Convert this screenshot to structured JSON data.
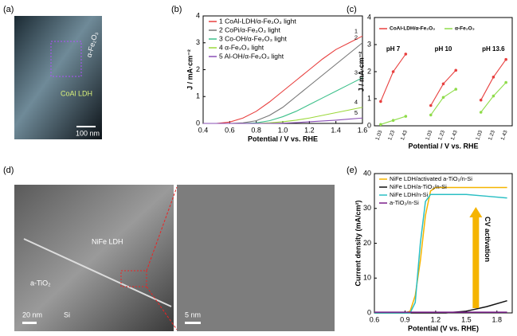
{
  "panels": {
    "a": {
      "label": "(a)",
      "texts": [
        "α-Fe₂O₃",
        "CoAl LDH",
        "100 nm"
      ]
    },
    "d": {
      "label": "(d)",
      "texts": [
        "NiFe LDH",
        "a-TiO₂",
        "20 nm",
        "Si",
        "5 nm"
      ]
    }
  },
  "chart_data": [
    {
      "type": "line",
      "label": "(b)",
      "xlabel": "Potential / V vs. RHE",
      "ylabel": "J / mA·cm⁻²",
      "x": [
        0.4,
        0.5,
        0.6,
        0.7,
        0.8,
        0.9,
        1.0,
        1.1,
        1.2,
        1.3,
        1.4,
        1.5,
        1.6
      ],
      "xlim": [
        0.4,
        1.6
      ],
      "xticks": [
        0.4,
        0.6,
        0.8,
        {
          "value": 1.0,
          "label": "1.0"
        },
        1.2,
        1.4,
        1.6
      ],
      "ylim": [
        0,
        4
      ],
      "yticks": [
        0,
        1,
        2,
        3,
        4
      ],
      "curve_labels": [
        "1",
        "2",
        "3",
        "4",
        "5"
      ],
      "series": [
        {
          "name": "1 CoAl-LDH/α-Fe₂O₃ light",
          "color": "#e8403f",
          "values": [
            0,
            0,
            0.05,
            0.2,
            0.45,
            0.8,
            1.2,
            1.6,
            2.0,
            2.4,
            2.75,
            3.0,
            3.25
          ]
        },
        {
          "name": "2 CoPi/α-Fe₂O₃ light",
          "color": "#777777",
          "values": [
            0,
            0,
            0,
            0.02,
            0.1,
            0.3,
            0.6,
            1.0,
            1.4,
            1.8,
            2.2,
            2.6,
            3.0
          ]
        },
        {
          "name": "3 Co-OH/α-Fe₂O₃ light",
          "color": "#3cc08a",
          "values": [
            0,
            0,
            0,
            0,
            0.02,
            0.1,
            0.25,
            0.45,
            0.7,
            0.95,
            1.2,
            1.45,
            1.7
          ]
        },
        {
          "name": "4 α-Fe₂O₃ light",
          "color": "#9bd83a",
          "values": [
            0,
            0,
            0,
            0,
            0,
            0.02,
            0.06,
            0.12,
            0.2,
            0.3,
            0.4,
            0.5,
            0.6
          ]
        },
        {
          "name": "5 Al-OH/α-Fe₂O₃ light",
          "color": "#8a4fb5",
          "values": [
            0,
            0,
            0,
            0,
            0,
            0,
            0.01,
            0.03,
            0.06,
            0.09,
            0.12,
            0.16,
            0.2
          ]
        }
      ]
    },
    {
      "type": "line",
      "label": "(c)",
      "xlabel": "Potential / V vs. RHE",
      "ylabel": "J / mA·cm⁻²",
      "markers": true,
      "categories": [
        "1.03",
        "1.23",
        "1.43",
        null,
        "1.03",
        "1.23",
        "1.43",
        null,
        "1.03",
        "1.23",
        "1.43"
      ],
      "annotations": [
        "pH 7",
        "pH 10",
        "pH 13.6"
      ],
      "ylim": [
        0,
        4
      ],
      "yticks": [
        0,
        1,
        2,
        3,
        4
      ],
      "series": [
        {
          "name": "CoAl-LDH/α-Fe₂O₃",
          "color": "#e8403f",
          "values": [
            0.9,
            2.0,
            2.65,
            null,
            0.75,
            1.55,
            2.05,
            null,
            0.95,
            1.8,
            2.45
          ]
        },
        {
          "name": "α-Fe₂O₃",
          "color": "#8fdc4a",
          "values": [
            0.05,
            0.2,
            0.35,
            null,
            0.4,
            1.05,
            1.35,
            null,
            0.5,
            1.1,
            1.6
          ]
        }
      ]
    },
    {
      "type": "line",
      "label": "(e)",
      "xlabel": "Potential (V vs. RHE)",
      "ylabel": "Current density (mA/cm²)",
      "annotation": "CV activation",
      "x": [
        0.6,
        0.9,
        0.95,
        1.0,
        1.05,
        1.1,
        1.15,
        1.2,
        1.3,
        1.5,
        1.7,
        1.9
      ],
      "xlim": [
        0.6,
        1.95
      ],
      "xticks": [
        0.6,
        0.9,
        1.2,
        1.5,
        1.8
      ],
      "ylim": [
        0,
        40
      ],
      "yticks": [
        0,
        10,
        20,
        30,
        40
      ],
      "series": [
        {
          "name": "NiFe LDH/activated a-TiO₂/n-Si",
          "color": "#f5b400",
          "values": [
            0,
            0,
            0.5,
            5,
            15,
            28,
            35,
            36,
            36,
            36,
            36,
            36
          ]
        },
        {
          "name": "NiFe LDH/a-TiO₂/n-Si",
          "color": "#111111",
          "values": [
            0,
            0,
            0,
            0,
            0,
            0,
            0,
            0,
            0,
            0.5,
            1.8,
            3.5
          ]
        },
        {
          "name": "NiFe LDH/n-Si",
          "color": "#2bbfc4",
          "values": [
            0,
            0,
            0,
            3,
            20,
            32,
            34,
            34,
            34,
            34,
            33.5,
            33
          ]
        },
        {
          "name": "a-TiO₂/n-Si",
          "color": "#7a1f8a",
          "values": [
            0.2,
            0.2,
            0.2,
            0.2,
            0.2,
            0.2,
            0.2,
            0.2,
            0.2,
            0.2,
            0.2,
            0.2
          ]
        }
      ]
    }
  ]
}
